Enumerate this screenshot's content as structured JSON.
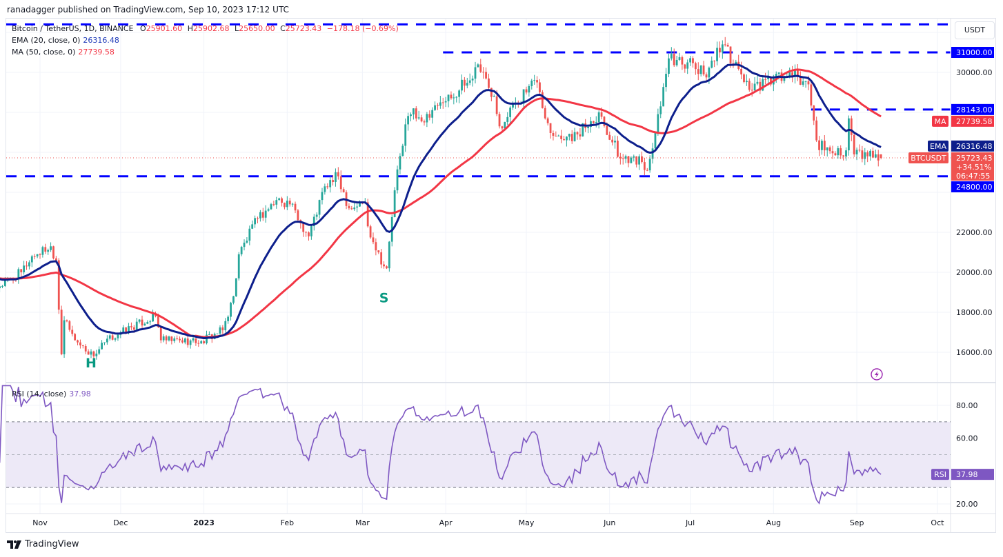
{
  "publisher": "ranadagger published on TradingView.com, Sep 10, 2023 17:12 UTC",
  "legend": {
    "symbol": "Bitcoin / TetherUS, 1D, BINANCE",
    "open_label": "O",
    "open": "25901.60",
    "high_label": "H",
    "high": "25902.68",
    "low_label": "L",
    "low": "25650.00",
    "close_label": "C",
    "close": "25723.43",
    "change": "−178.18 (−0.69%)",
    "ema_label": "EMA (20, close, 0)",
    "ema_value": "26316.48",
    "ma_label": "MA (50, close, 0)",
    "ma_value": "27739.58",
    "rsi_label": "RSI (14, close)",
    "rsi_value": "37.98"
  },
  "currency": "USDT",
  "footer_brand": "TradingView",
  "colors": {
    "up": "#26a69a",
    "down": "#ef5350",
    "ema": "#0d1f8c",
    "ma": "#f23645",
    "level": "#0000ff",
    "rsi": "#7e57c2",
    "rsi_band": "#ede9f7",
    "pattern_label": "#089981"
  },
  "chart_data": [
    {
      "type": "candlestick",
      "symbol": "BTCUSDT",
      "interval": "1D",
      "ylim": [
        15000,
        33000
      ],
      "price_ticks": [
        "16000.00",
        "18000.00",
        "20000.00",
        "22000.00",
        "30000.00"
      ],
      "time_ticks": [
        {
          "date": "2022-11-01",
          "label": "Nov"
        },
        {
          "date": "2022-12-01",
          "label": "Dec"
        },
        {
          "date": "2023-01-01",
          "label": "2023"
        },
        {
          "date": "2023-02-01",
          "label": "Feb"
        },
        {
          "date": "2023-03-01",
          "label": "Mar"
        },
        {
          "date": "2023-04-01",
          "label": "Apr"
        },
        {
          "date": "2023-05-01",
          "label": "May"
        },
        {
          "date": "2023-06-01",
          "label": "Jun"
        },
        {
          "date": "2023-07-01",
          "label": "Jul"
        },
        {
          "date": "2023-08-01",
          "label": "Aug"
        },
        {
          "date": "2023-09-01",
          "label": "Sep"
        },
        {
          "date": "2023-10-01",
          "label": "Oct"
        }
      ],
      "close_keypoints": [
        [
          "2022-10-17",
          19300
        ],
        [
          "2022-10-25",
          20000
        ],
        [
          "2022-10-29",
          20800
        ],
        [
          "2022-11-05",
          21300
        ],
        [
          "2022-11-07",
          20600
        ],
        [
          "2022-11-09",
          15900
        ],
        [
          "2022-11-10",
          17600
        ],
        [
          "2022-11-14",
          16600
        ],
        [
          "2022-11-21",
          15800
        ],
        [
          "2022-11-25",
          16500
        ],
        [
          "2022-12-01",
          17000
        ],
        [
          "2022-12-14",
          17800
        ],
        [
          "2022-12-16",
          16600
        ],
        [
          "2022-12-31",
          16550
        ],
        [
          "2023-01-08",
          17100
        ],
        [
          "2023-01-12",
          18800
        ],
        [
          "2023-01-14",
          20900
        ],
        [
          "2023-01-21",
          22700
        ],
        [
          "2023-01-29",
          23700
        ],
        [
          "2023-02-02",
          23400
        ],
        [
          "2023-02-09",
          21800
        ],
        [
          "2023-02-15",
          24300
        ],
        [
          "2023-02-20",
          24800
        ],
        [
          "2023-02-24",
          23200
        ],
        [
          "2023-03-02",
          23500
        ],
        [
          "2023-03-03",
          22300
        ],
        [
          "2023-03-09",
          20300
        ],
        [
          "2023-03-10",
          20200
        ],
        [
          "2023-03-13",
          24100
        ],
        [
          "2023-03-17",
          27400
        ],
        [
          "2023-03-20",
          28200
        ],
        [
          "2023-03-24",
          27500
        ],
        [
          "2023-03-31",
          28500
        ],
        [
          "2023-04-10",
          29600
        ],
        [
          "2023-04-13",
          30400
        ],
        [
          "2023-04-19",
          28800
        ],
        [
          "2023-04-21",
          27300
        ],
        [
          "2023-04-26",
          28400
        ],
        [
          "2023-05-05",
          29500
        ],
        [
          "2023-05-08",
          27700
        ],
        [
          "2023-05-12",
          26800
        ],
        [
          "2023-05-20",
          26900
        ],
        [
          "2023-05-28",
          28000
        ],
        [
          "2023-06-05",
          25700
        ],
        [
          "2023-06-10",
          25800
        ],
        [
          "2023-06-15",
          25100
        ],
        [
          "2023-06-20",
          28300
        ],
        [
          "2023-06-23",
          30700
        ],
        [
          "2023-06-30",
          30500
        ],
        [
          "2023-07-06",
          29900
        ],
        [
          "2023-07-13",
          31400
        ],
        [
          "2023-07-20",
          29900
        ],
        [
          "2023-07-24",
          29100
        ],
        [
          "2023-08-01",
          29700
        ],
        [
          "2023-08-08",
          29800
        ],
        [
          "2023-08-14",
          29400
        ],
        [
          "2023-08-17",
          26600
        ],
        [
          "2023-08-20",
          26100
        ],
        [
          "2023-08-28",
          26100
        ],
        [
          "2023-08-29",
          27700
        ],
        [
          "2023-08-31",
          25900
        ],
        [
          "2023-09-05",
          25800
        ],
        [
          "2023-09-08",
          25900
        ],
        [
          "2023-09-10",
          25723.43
        ]
      ],
      "indicators": [
        {
          "name": "EMA",
          "period": 20,
          "last": "26316.48"
        },
        {
          "name": "MA",
          "period": 50,
          "last": "27739.58"
        }
      ],
      "levels": [
        {
          "value": 32400,
          "from": "2022-10-17",
          "label": ""
        },
        {
          "value": 31000,
          "from": "2023-03-31",
          "label": "31000.00"
        },
        {
          "value": 28143,
          "from": "2023-08-15",
          "label": "28143.00"
        },
        {
          "value": 24800,
          "from": "2022-10-17",
          "label": "24800.00"
        }
      ],
      "price_labels": {
        "ma": {
          "tag": "MA",
          "value": "27739.58"
        },
        "ema": {
          "tag": "EMA",
          "value": "26316.48"
        },
        "last": {
          "tag": "BTCUSDT",
          "value": "25723.43",
          "change_pct": "+34.51%",
          "countdown": "06:47:55"
        }
      },
      "annotations": [
        {
          "text": "H",
          "date": "2022-11-20",
          "price": 15250
        },
        {
          "text": "S",
          "date": "2023-03-09",
          "price": 18500
        }
      ]
    },
    {
      "type": "line",
      "name": "RSI",
      "ylim": [
        15,
        92
      ],
      "ticks": [
        "80.00",
        "60.00",
        "20.00"
      ],
      "band": [
        30,
        70
      ],
      "midline": 50,
      "last": "37.98",
      "tag": "RSI"
    }
  ]
}
